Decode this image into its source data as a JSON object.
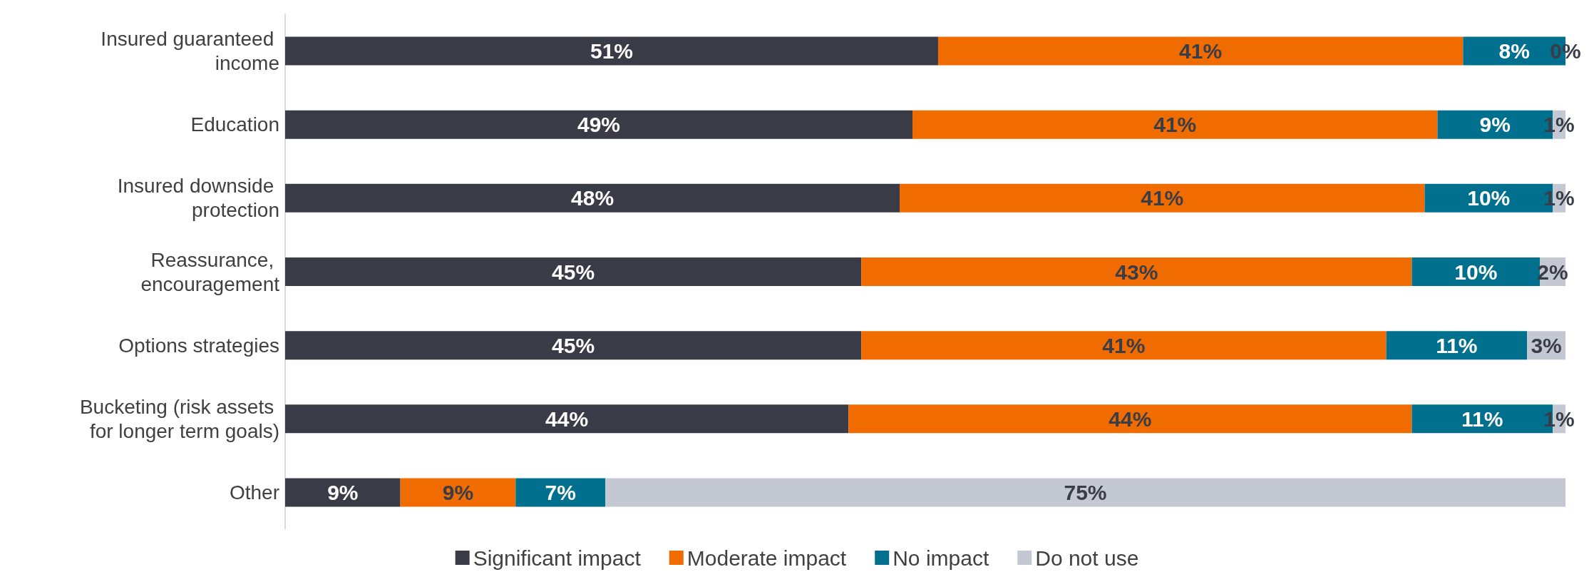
{
  "chart_data": {
    "type": "bar",
    "orientation": "horizontal",
    "stacked": true,
    "xlim": [
      0,
      100
    ],
    "tick_labels": "y",
    "legend": "bottom",
    "categories": [
      "Insured guaranteed income",
      "Education",
      "Insured downside protection",
      "Reassurance, encouragement",
      "Options strategies",
      "Bucketing (risk assets for longer term goals)",
      "Other"
    ],
    "series": [
      {
        "name": "Significant impact",
        "color": "#393c47",
        "values": [
          51,
          49,
          48,
          45,
          45,
          44,
          9
        ],
        "value_labels": [
          "51%",
          "49%",
          "48%",
          "45%",
          "45%",
          "44%",
          "9%"
        ]
      },
      {
        "name": "Moderate impact",
        "color": "#f06c00",
        "values": [
          41,
          41,
          41,
          43,
          41,
          44,
          9
        ],
        "value_labels": [
          "41%",
          "41%",
          "41%",
          "43%",
          "41%",
          "44%",
          "9%"
        ]
      },
      {
        "name": "No impact",
        "color": "#00708e",
        "values": [
          8,
          9,
          10,
          10,
          11,
          11,
          7
        ],
        "value_labels": [
          "8%",
          "9%",
          "10%",
          "10%",
          "11%",
          "11%",
          "7%"
        ]
      },
      {
        "name": "Do not use",
        "color": "#c3c8d3",
        "values": [
          0,
          1,
          1,
          2,
          3,
          1,
          75
        ],
        "value_labels": [
          "0%",
          "1%",
          "1%",
          "2%",
          "3%",
          "1%",
          "75%"
        ]
      }
    ]
  }
}
